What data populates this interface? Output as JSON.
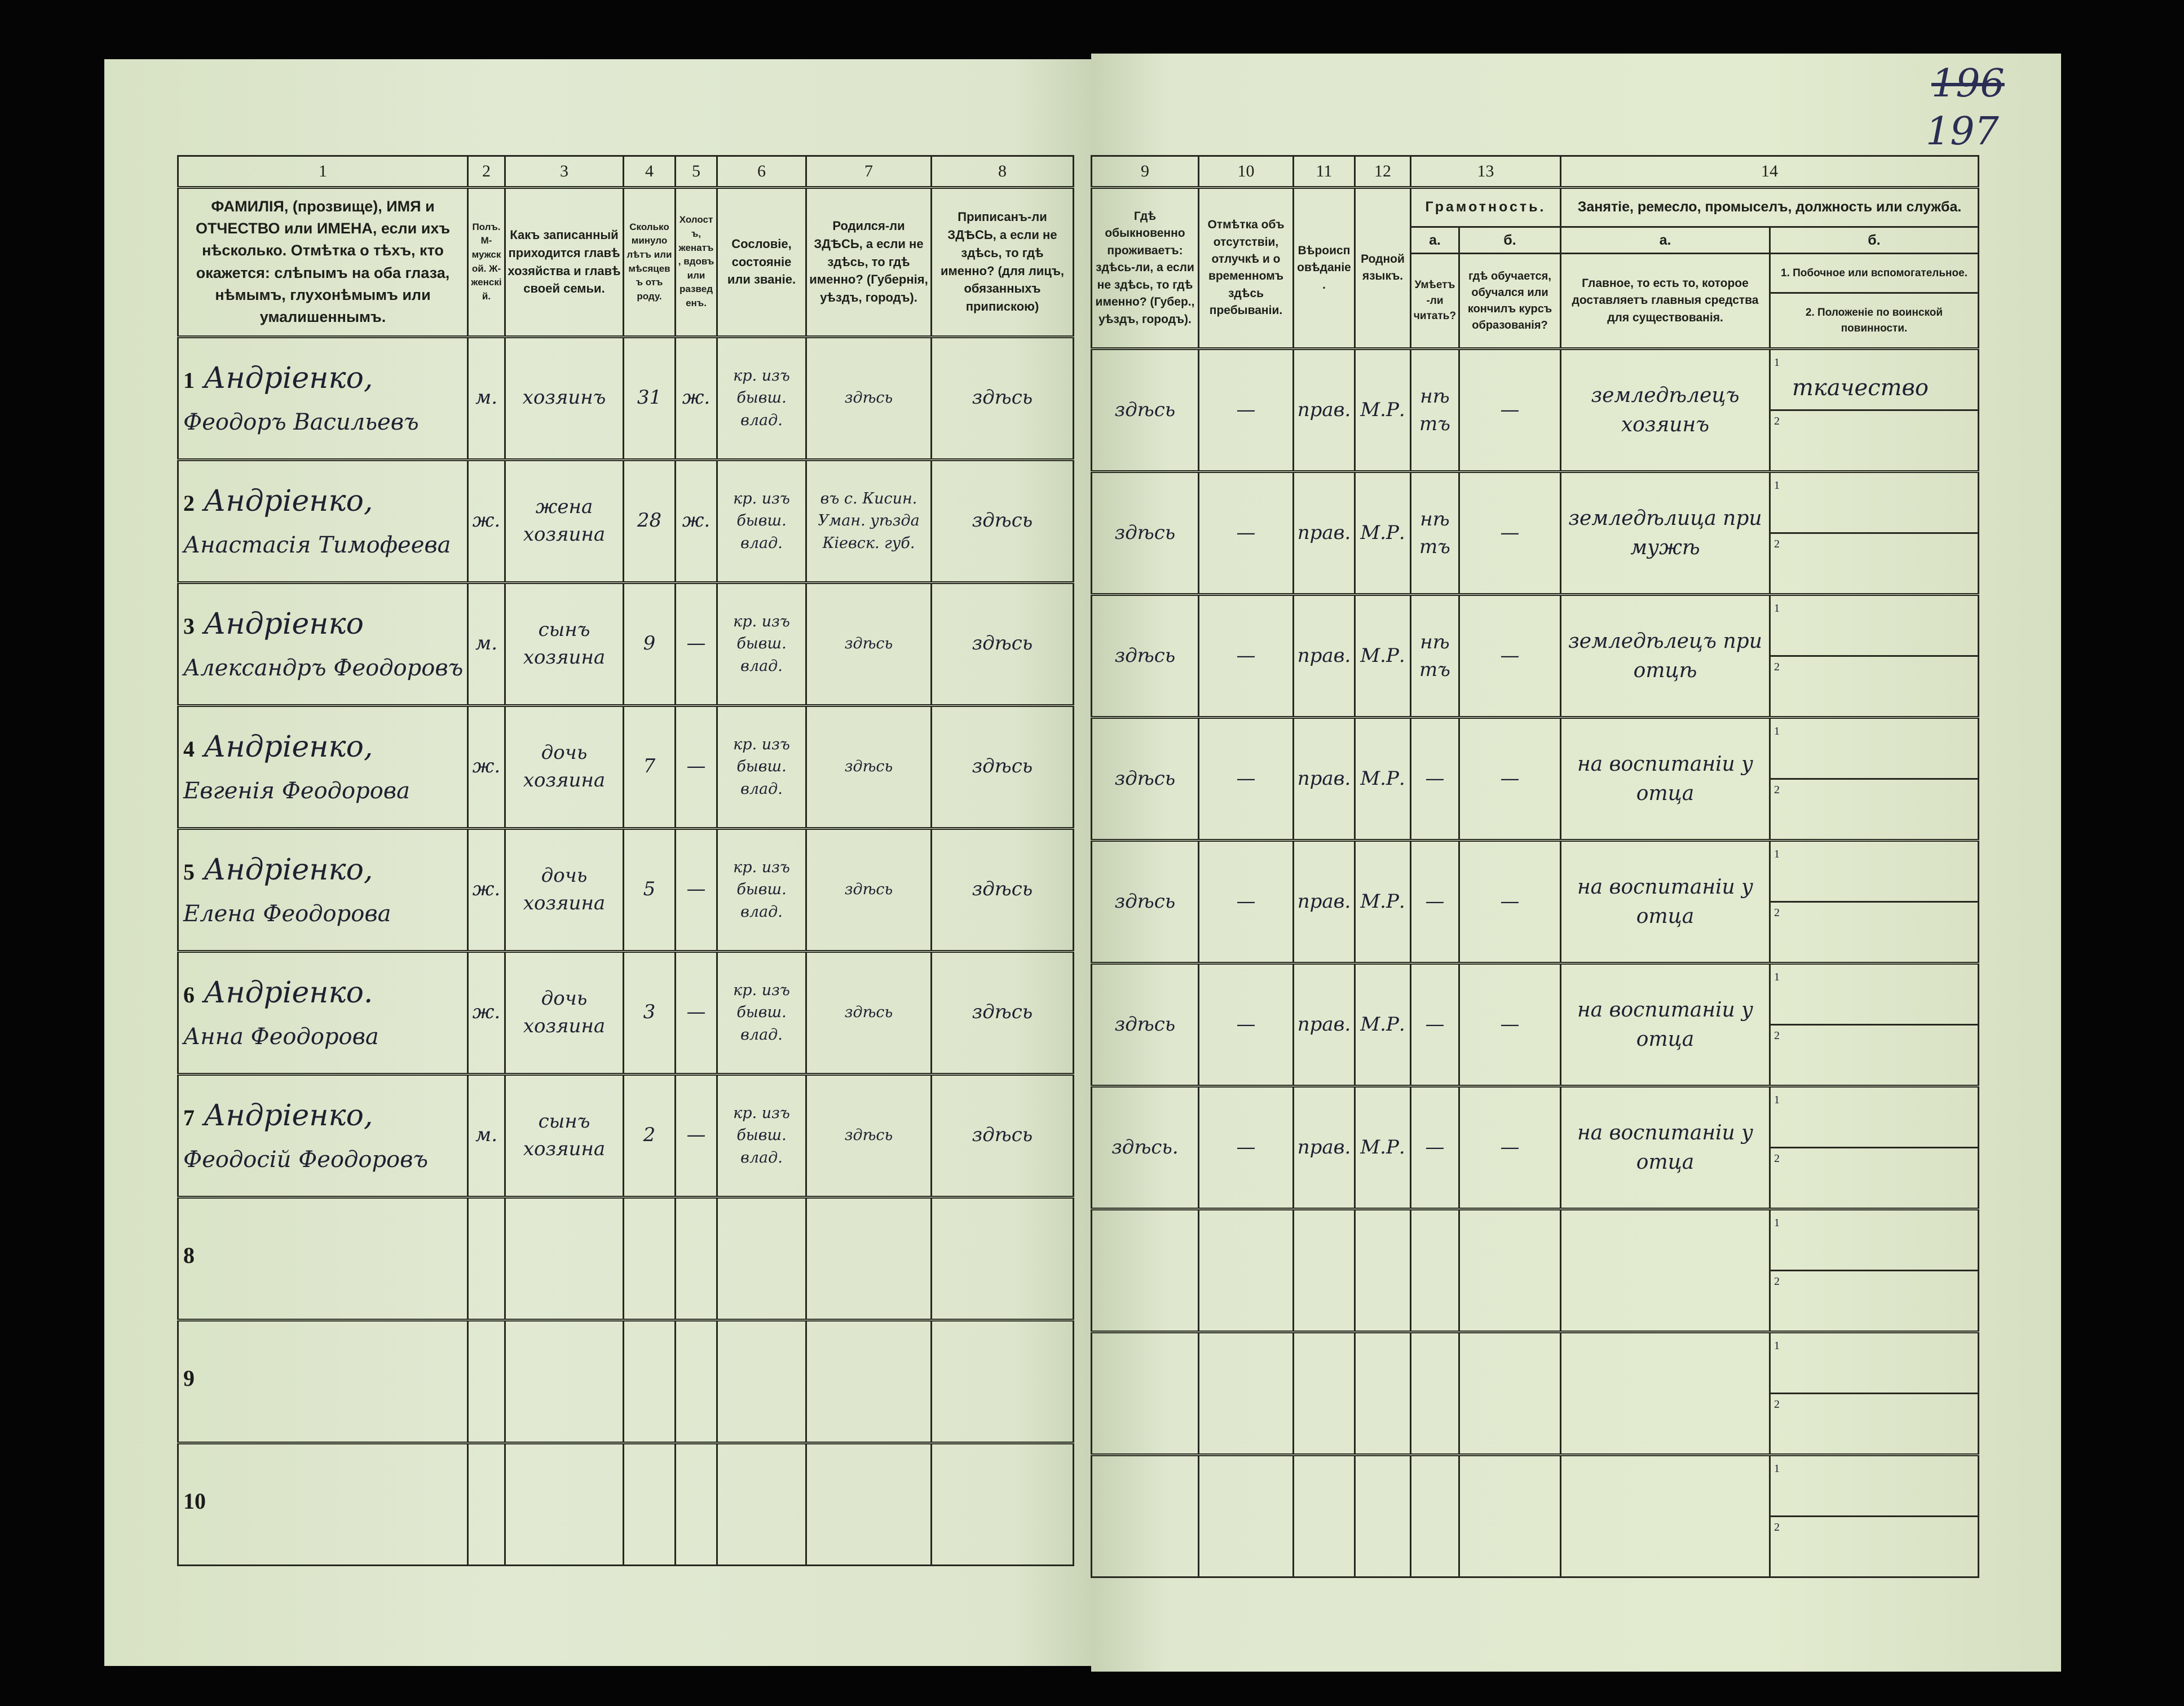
{
  "page_numbers": {
    "crossed": "196",
    "current": "197"
  },
  "left_header": [
    {
      "num": "1",
      "text": "ФАМИЛІЯ, (прозвище), ИМЯ и ОТЧЕСТВО или ИМЕНА, если ихъ нѣсколько. Отмѣтка о тѣхъ, кто окажется: слѣпымъ на оба глаза, нѣмымъ, глухонѣмымъ или умалишеннымъ."
    },
    {
      "num": "2",
      "text": "Полъ. М-мужской. Ж-женскій."
    },
    {
      "num": "3",
      "text": "Какъ записанный приходится главѣ хозяйства и главѣ своей семьи."
    },
    {
      "num": "4",
      "text": "Сколько минуло лѣтъ или мѣсяцевъ отъ роду."
    },
    {
      "num": "5",
      "text": "Холостъ, женатъ, вдовъ или разведенъ."
    },
    {
      "num": "6",
      "text": "Сословіе, состояніе или званіе."
    },
    {
      "num": "7",
      "text": "Родился-ли ЗДѢСЬ, а если не здѣсь, то гдѣ именно? (Губернія, уѣздъ, городъ)."
    },
    {
      "num": "8",
      "text": "Приписанъ-ли ЗДѢСЬ, а если не здѣсь, то гдѣ именно? (для лицъ, обязанныхъ припискою)"
    }
  ],
  "right_header": {
    "col9": {
      "num": "9",
      "text": "Гдѣ обыкновенно проживаетъ: здѣсь-ли, а если не здѣсь, то гдѣ именно? (Губер., уѣздъ, городъ)."
    },
    "col10": {
      "num": "10",
      "text": "Отмѣтка объ отсутствіи, отлучкѣ и о временномъ здѣсь пребываніи."
    },
    "col11": {
      "num": "11",
      "text": "Вѣроисповѣданіе."
    },
    "col12": {
      "num": "12",
      "text": "Родной языкъ."
    },
    "col13": {
      "num": "13",
      "title": "Грамотность.",
      "a": "а.",
      "b": "б.",
      "a_text": "Умѣетъ-ли читать?",
      "b_text": "гдѣ обучается, обучался или кончилъ курсъ образованія?"
    },
    "col14": {
      "num": "14",
      "title": "Занятіе, ремесло, промыселъ, должность или служба.",
      "a": "а.",
      "b": "б.",
      "a_text": "Главное, то есть то, которое доставляетъ главныя средства для существованія.",
      "b1_text": "1. Побочное или вспомогательное.",
      "b2_text": "2. Положеніе по воинской повинности."
    }
  },
  "rows": [
    {
      "n": "1",
      "surname": "Андріенко,",
      "given": "Феодоръ Васильевъ",
      "sex": "м.",
      "relation": "хозяинъ",
      "age": "31",
      "marital": "ж.",
      "estate": "кр. изъ бывш. влад.",
      "born": "здѣсь",
      "registered": "здѣсь",
      "resides": "здѣсь",
      "absence": "—",
      "religion": "прав.",
      "language": "М.Р.",
      "reads": "нѣтъ",
      "schooling": "—",
      "occupation_main": "земледѣлецъ хозяинъ",
      "occupation_side": "ткачество",
      "military": ""
    },
    {
      "n": "2",
      "surname": "Андріенко,",
      "given": "Анастасія Тимофеева",
      "sex": "ж.",
      "relation": "жена хозяина",
      "age": "28",
      "marital": "ж.",
      "estate": "кр. изъ бывш. влад.",
      "born": "въ с. Кисин. Уман. уѣзда Кіевск. губ.",
      "registered": "здѣсь",
      "resides": "здѣсь",
      "absence": "—",
      "religion": "прав.",
      "language": "М.Р.",
      "reads": "нѣтъ",
      "schooling": "—",
      "occupation_main": "земледѣлица при мужѣ",
      "occupation_side": "",
      "military": ""
    },
    {
      "n": "3",
      "surname": "Андріенко",
      "given": "Александръ Феодоровъ",
      "sex": "м.",
      "relation": "сынъ хозяина",
      "age": "9",
      "marital": "—",
      "estate": "кр. изъ бывш. влад.",
      "born": "здѣсь",
      "registered": "здѣсь",
      "resides": "здѣсь",
      "absence": "—",
      "religion": "прав.",
      "language": "М.Р.",
      "reads": "нѣтъ",
      "schooling": "—",
      "occupation_main": "земледѣлецъ при отцѣ",
      "occupation_side": "",
      "military": ""
    },
    {
      "n": "4",
      "surname": "Андріенко,",
      "given": "Евгенія Феодорова",
      "sex": "ж.",
      "relation": "дочь хозяина",
      "age": "7",
      "marital": "—",
      "estate": "кр. изъ бывш. влад.",
      "born": "здѣсь",
      "registered": "здѣсь",
      "resides": "здѣсь",
      "absence": "—",
      "religion": "прав.",
      "language": "М.Р.",
      "reads": "—",
      "schooling": "—",
      "occupation_main": "на воспитаніи у отца",
      "occupation_side": "",
      "military": ""
    },
    {
      "n": "5",
      "surname": "Андріенко,",
      "given": "Елена Феодорова",
      "sex": "ж.",
      "relation": "дочь хозяина",
      "age": "5",
      "marital": "—",
      "estate": "кр. изъ бывш. влад.",
      "born": "здѣсь",
      "registered": "здѣсь",
      "resides": "здѣсь",
      "absence": "—",
      "religion": "прав.",
      "language": "М.Р.",
      "reads": "—",
      "schooling": "—",
      "occupation_main": "на воспитаніи у отца",
      "occupation_side": "",
      "military": ""
    },
    {
      "n": "6",
      "surname": "Андріенко.",
      "given": "Анна Феодорова",
      "sex": "ж.",
      "relation": "дочь хозяина",
      "age": "3",
      "marital": "—",
      "estate": "кр. изъ бывш. влад.",
      "born": "здѣсь",
      "registered": "здѣсь",
      "resides": "здѣсь",
      "absence": "—",
      "religion": "прав.",
      "language": "М.Р.",
      "reads": "—",
      "schooling": "—",
      "occupation_main": "на воспитаніи у отца",
      "occupation_side": "",
      "military": ""
    },
    {
      "n": "7",
      "surname": "Андріенко,",
      "given": "Феодосій Феодоровъ",
      "sex": "м.",
      "relation": "сынъ хозяина",
      "age": "2",
      "marital": "—",
      "estate": "кр. изъ бывш. влад.",
      "born": "здѣсь",
      "registered": "здѣсь",
      "resides": "здѣсь.",
      "absence": "—",
      "religion": "прав.",
      "language": "М.Р.",
      "reads": "—",
      "schooling": "—",
      "occupation_main": "на воспитаніи у отца",
      "occupation_side": "",
      "military": ""
    },
    {
      "n": "8",
      "surname": "",
      "given": "",
      "sex": "",
      "relation": "",
      "age": "",
      "marital": "",
      "estate": "",
      "born": "",
      "registered": "",
      "resides": "",
      "absence": "",
      "religion": "",
      "language": "",
      "reads": "",
      "schooling": "",
      "occupation_main": "",
      "occupation_side": "",
      "military": ""
    },
    {
      "n": "9",
      "surname": "",
      "given": "",
      "sex": "",
      "relation": "",
      "age": "",
      "marital": "",
      "estate": "",
      "born": "",
      "registered": "",
      "resides": "",
      "absence": "",
      "religion": "",
      "language": "",
      "reads": "",
      "schooling": "",
      "occupation_main": "",
      "occupation_side": "",
      "military": ""
    },
    {
      "n": "10",
      "surname": "",
      "given": "",
      "sex": "",
      "relation": "",
      "age": "",
      "marital": "",
      "estate": "",
      "born": "",
      "registered": "",
      "resides": "",
      "absence": "",
      "religion": "",
      "language": "",
      "reads": "",
      "schooling": "",
      "occupation_main": "",
      "occupation_side": "",
      "military": ""
    }
  ],
  "sub_labels": {
    "first": "1",
    "second": "2"
  }
}
